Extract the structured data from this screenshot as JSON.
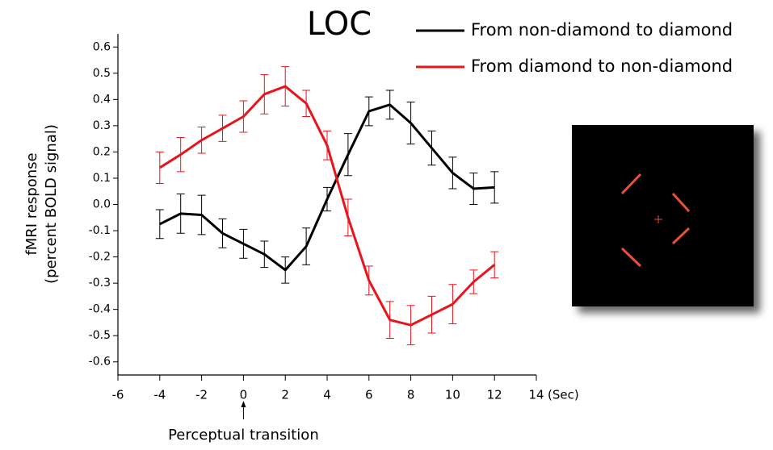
{
  "chart_data": {
    "type": "line",
    "title": "LOC",
    "x_label": "(Sec)",
    "y_label": [
      "fMRI response",
      "(percent BOLD signal)"
    ],
    "annotation": "Perceptual transition",
    "annotation_x": 0,
    "x": [
      -4,
      -3,
      -2,
      -1,
      0,
      1,
      2,
      3,
      4,
      5,
      6,
      7,
      8,
      9,
      10,
      11,
      12
    ],
    "series": [
      {
        "name": "From non-diamond to diamond",
        "color": "#000000",
        "values": [
          -0.075,
          -0.035,
          -0.04,
          -0.11,
          -0.15,
          -0.19,
          -0.25,
          -0.16,
          0.02,
          0.19,
          0.355,
          0.38,
          0.31,
          0.215,
          0.12,
          0.06,
          0.065
        ],
        "errors": [
          0.055,
          0.075,
          0.075,
          0.055,
          0.055,
          0.05,
          0.05,
          0.07,
          0.045,
          0.08,
          0.055,
          0.055,
          0.08,
          0.065,
          0.06,
          0.06,
          0.06
        ]
      },
      {
        "name": "From diamond to non-diamond",
        "color": "#e8141b",
        "values": [
          0.14,
          0.19,
          0.245,
          0.29,
          0.335,
          0.42,
          0.45,
          0.385,
          0.225,
          -0.05,
          -0.29,
          -0.44,
          -0.46,
          -0.42,
          -0.38,
          -0.295,
          -0.23
        ],
        "errors": [
          0.06,
          0.065,
          0.05,
          0.05,
          0.06,
          0.075,
          0.075,
          0.05,
          0.055,
          0.07,
          0.055,
          0.07,
          0.075,
          0.07,
          0.075,
          0.045,
          0.05
        ]
      }
    ],
    "xlim": [
      -6,
      14
    ],
    "xticks": [
      -6,
      -4,
      -2,
      0,
      2,
      4,
      6,
      8,
      10,
      12,
      14
    ],
    "ylim": [
      -0.65,
      0.65
    ],
    "yticks": [
      -0.6,
      -0.5,
      -0.4,
      -0.3,
      -0.2,
      -0.1,
      {
        "value": 0,
        "label": "0.0"
      },
      0.1,
      0.2,
      0.3,
      0.4,
      0.5,
      0.6
    ]
  }
}
